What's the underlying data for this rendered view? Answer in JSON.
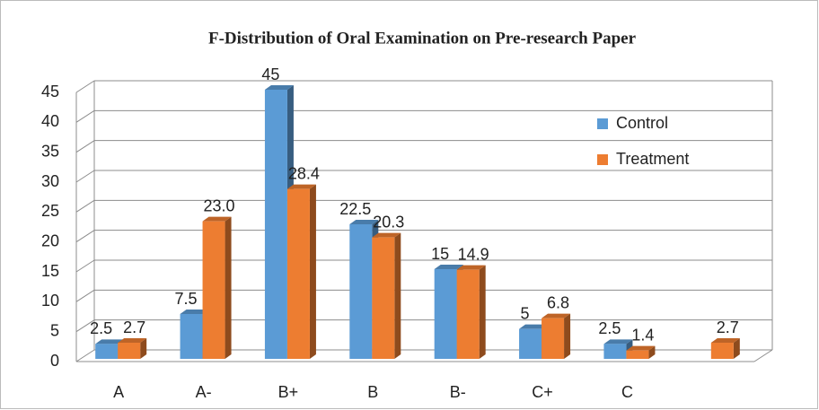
{
  "chart_data": {
    "type": "bar",
    "title": "F-Distribution  of Oral Examination on Pre-research Paper",
    "categories": [
      "A",
      "A-",
      "B+",
      "B",
      "B-",
      "C+",
      "C",
      null
    ],
    "series": [
      {
        "name": "Control",
        "color": "#5b9bd5",
        "values": [
          2.5,
          7.5,
          45,
          22.5,
          15,
          5,
          2.5,
          null
        ]
      },
      {
        "name": "Treatment",
        "color": "#ed7d31",
        "values": [
          2.7,
          23.0,
          28.4,
          20.3,
          14.9,
          6.8,
          1.4,
          2.7
        ],
        "value_labels": [
          "2.7",
          "23.0",
          "28.4",
          "20.3",
          "14.9",
          "6.8",
          "1.4",
          "2.7"
        ]
      }
    ],
    "ylim": [
      0,
      45
    ],
    "yticks": [
      0,
      5,
      10,
      15,
      20,
      25,
      30,
      35,
      40,
      45
    ],
    "grid": true,
    "legend": "upper right"
  }
}
